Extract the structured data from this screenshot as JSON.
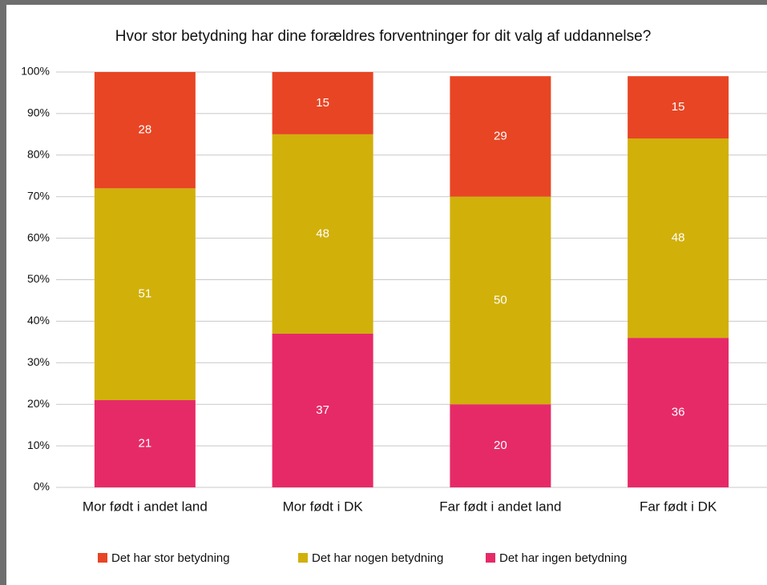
{
  "chart_data": {
    "type": "stacked_bar",
    "title": "Hvor stor betydning har dine forældres forventninger for dit valg af uddannelse?",
    "categories": [
      "Mor født i andet land",
      "Mor født i DK",
      "Far født i andet land",
      "Far født i DK"
    ],
    "series": [
      {
        "name": "Det har stor betydning",
        "color": "#e84524",
        "values": [
          28,
          15,
          29,
          15
        ]
      },
      {
        "name": "Det har nogen betydning",
        "color": "#d1b00a",
        "values": [
          51,
          48,
          50,
          48
        ]
      },
      {
        "name": "Det har ingen betydning",
        "color": "#e62a68",
        "values": [
          21,
          37,
          20,
          36
        ]
      }
    ],
    "ylim": [
      0,
      100
    ],
    "yticks": [
      {
        "value": 0,
        "label": "0%"
      },
      {
        "value": 10,
        "label": "10%"
      },
      {
        "value": 20,
        "label": "20%"
      },
      {
        "value": 30,
        "label": "30%"
      },
      {
        "value": 40,
        "label": "40%"
      },
      {
        "value": 50,
        "label": "50%"
      },
      {
        "value": 60,
        "label": "60%"
      },
      {
        "value": 70,
        "label": "70%"
      },
      {
        "value": 80,
        "label": "80%"
      },
      {
        "value": 90,
        "label": "90%"
      },
      {
        "value": 100,
        "label": "100%"
      }
    ],
    "grid": true,
    "legend": "bottom"
  }
}
